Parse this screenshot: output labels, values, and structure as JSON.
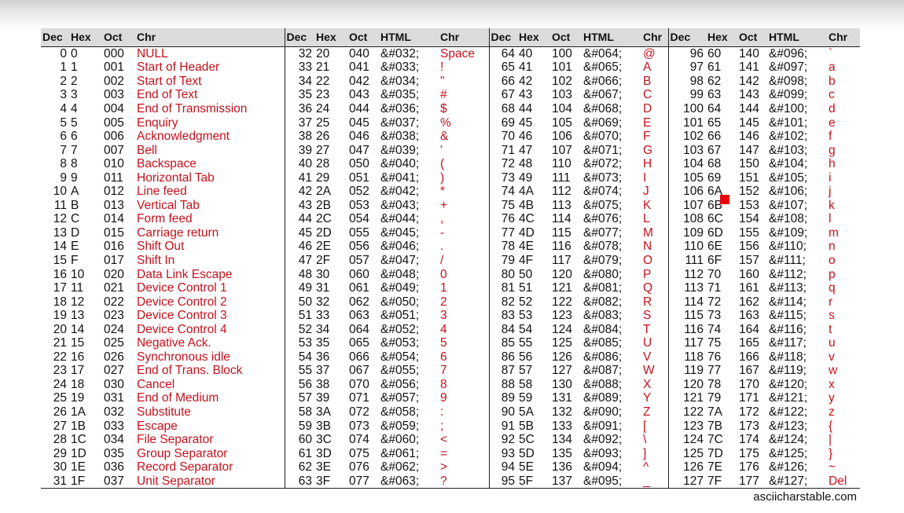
{
  "headers": [
    [
      "Dec",
      "Hex",
      "Oct",
      "Chr"
    ],
    [
      "Dec",
      "Hex",
      "Oct",
      "HTML",
      "Chr"
    ],
    [
      "Dec",
      "Hex",
      "Oct",
      "HTML",
      "Chr"
    ],
    [
      "Dec",
      "Hex",
      "Oct",
      "HTML",
      "Chr"
    ]
  ],
  "rows": [
    [
      [
        "0",
        "0",
        "000",
        "NULL"
      ],
      [
        "32",
        "20",
        "040",
        "&#032;",
        "Space"
      ],
      [
        "64",
        "40",
        "100",
        "&#064;",
        "@"
      ],
      [
        "96",
        "60",
        "140",
        "&#096;",
        "`"
      ]
    ],
    [
      [
        "1",
        "1",
        "001",
        "Start of Header"
      ],
      [
        "33",
        "21",
        "041",
        "&#033;",
        "!"
      ],
      [
        "65",
        "41",
        "101",
        "&#065;",
        "A"
      ],
      [
        "97",
        "61",
        "141",
        "&#097;",
        "a"
      ]
    ],
    [
      [
        "2",
        "2",
        "002",
        "Start of Text"
      ],
      [
        "34",
        "22",
        "042",
        "&#034;",
        "\""
      ],
      [
        "66",
        "42",
        "102",
        "&#066;",
        "B"
      ],
      [
        "98",
        "62",
        "142",
        "&#098;",
        "b"
      ]
    ],
    [
      [
        "3",
        "3",
        "003",
        "End of Text"
      ],
      [
        "35",
        "23",
        "043",
        "&#035;",
        "#"
      ],
      [
        "67",
        "43",
        "103",
        "&#067;",
        "C"
      ],
      [
        "99",
        "63",
        "143",
        "&#099;",
        "c"
      ]
    ],
    [
      [
        "4",
        "4",
        "004",
        "End of Transmission"
      ],
      [
        "36",
        "24",
        "044",
        "&#036;",
        "$"
      ],
      [
        "68",
        "44",
        "104",
        "&#068;",
        "D"
      ],
      [
        "100",
        "64",
        "144",
        "&#100;",
        "d"
      ]
    ],
    [
      [
        "5",
        "5",
        "005",
        "Enquiry"
      ],
      [
        "37",
        "25",
        "045",
        "&#037;",
        "%"
      ],
      [
        "69",
        "45",
        "105",
        "&#069;",
        "E"
      ],
      [
        "101",
        "65",
        "145",
        "&#101;",
        "e"
      ]
    ],
    [
      [
        "6",
        "6",
        "006",
        "Acknowledgment"
      ],
      [
        "38",
        "26",
        "046",
        "&#038;",
        "&"
      ],
      [
        "70",
        "46",
        "106",
        "&#070;",
        "F"
      ],
      [
        "102",
        "66",
        "146",
        "&#102;",
        "f"
      ]
    ],
    [
      [
        "7",
        "7",
        "007",
        "Bell"
      ],
      [
        "39",
        "27",
        "047",
        "&#039;",
        "'"
      ],
      [
        "71",
        "47",
        "107",
        "&#071;",
        "G"
      ],
      [
        "103",
        "67",
        "147",
        "&#103;",
        "g"
      ]
    ],
    [
      [
        "8",
        "8",
        "010",
        "Backspace"
      ],
      [
        "40",
        "28",
        "050",
        "&#040;",
        "("
      ],
      [
        "72",
        "48",
        "110",
        "&#072;",
        "H"
      ],
      [
        "104",
        "68",
        "150",
        "&#104;",
        "h"
      ]
    ],
    [
      [
        "9",
        "9",
        "011",
        "Horizontal Tab"
      ],
      [
        "41",
        "29",
        "051",
        "&#041;",
        ")"
      ],
      [
        "73",
        "49",
        "111",
        "&#073;",
        "I"
      ],
      [
        "105",
        "69",
        "151",
        "&#105;",
        "i"
      ]
    ],
    [
      [
        "10",
        "A",
        "012",
        "Line feed"
      ],
      [
        "42",
        "2A",
        "052",
        "&#042;",
        "*"
      ],
      [
        "74",
        "4A",
        "112",
        "&#074;",
        "J"
      ],
      [
        "106",
        "6A",
        "152",
        "&#106;",
        "j"
      ]
    ],
    [
      [
        "11",
        "B",
        "013",
        "Vertical Tab"
      ],
      [
        "43",
        "2B",
        "053",
        "&#043;",
        "+"
      ],
      [
        "75",
        "4B",
        "113",
        "&#075;",
        "K"
      ],
      [
        "107",
        "6B",
        "153",
        "&#107;",
        "k"
      ]
    ],
    [
      [
        "12",
        "C",
        "014",
        "Form feed"
      ],
      [
        "44",
        "2C",
        "054",
        "&#044;",
        ","
      ],
      [
        "76",
        "4C",
        "114",
        "&#076;",
        "L"
      ],
      [
        "108",
        "6C",
        "154",
        "&#108;",
        "l"
      ]
    ],
    [
      [
        "13",
        "D",
        "015",
        "Carriage return"
      ],
      [
        "45",
        "2D",
        "055",
        "&#045;",
        "-"
      ],
      [
        "77",
        "4D",
        "115",
        "&#077;",
        "M"
      ],
      [
        "109",
        "6D",
        "155",
        "&#109;",
        "m"
      ]
    ],
    [
      [
        "14",
        "E",
        "016",
        "Shift Out"
      ],
      [
        "46",
        "2E",
        "056",
        "&#046;",
        "."
      ],
      [
        "78",
        "4E",
        "116",
        "&#078;",
        "N"
      ],
      [
        "110",
        "6E",
        "156",
        "&#110;",
        "n"
      ]
    ],
    [
      [
        "15",
        "F",
        "017",
        "Shift In"
      ],
      [
        "47",
        "2F",
        "057",
        "&#047;",
        "/"
      ],
      [
        "79",
        "4F",
        "117",
        "&#079;",
        "O"
      ],
      [
        "111",
        "6F",
        "157",
        "&#111;",
        "o"
      ]
    ],
    [
      [
        "16",
        "10",
        "020",
        "Data Link Escape"
      ],
      [
        "48",
        "30",
        "060",
        "&#048;",
        "0"
      ],
      [
        "80",
        "50",
        "120",
        "&#080;",
        "P"
      ],
      [
        "112",
        "70",
        "160",
        "&#112;",
        "p"
      ]
    ],
    [
      [
        "17",
        "11",
        "021",
        "Device Control 1"
      ],
      [
        "49",
        "31",
        "061",
        "&#049;",
        "1"
      ],
      [
        "81",
        "51",
        "121",
        "&#081;",
        "Q"
      ],
      [
        "113",
        "71",
        "161",
        "&#113;",
        "q"
      ]
    ],
    [
      [
        "18",
        "12",
        "022",
        "Device Control 2"
      ],
      [
        "50",
        "32",
        "062",
        "&#050;",
        "2"
      ],
      [
        "82",
        "52",
        "122",
        "&#082;",
        "R"
      ],
      [
        "114",
        "72",
        "162",
        "&#114;",
        "r"
      ]
    ],
    [
      [
        "19",
        "13",
        "023",
        "Device Control 3"
      ],
      [
        "51",
        "33",
        "063",
        "&#051;",
        "3"
      ],
      [
        "83",
        "53",
        "123",
        "&#083;",
        "S"
      ],
      [
        "115",
        "73",
        "163",
        "&#115;",
        "s"
      ]
    ],
    [
      [
        "20",
        "14",
        "024",
        "Device Control 4"
      ],
      [
        "52",
        "34",
        "064",
        "&#052;",
        "4"
      ],
      [
        "84",
        "54",
        "124",
        "&#084;",
        "T"
      ],
      [
        "116",
        "74",
        "164",
        "&#116;",
        "t"
      ]
    ],
    [
      [
        "21",
        "15",
        "025",
        "Negative Ack."
      ],
      [
        "53",
        "35",
        "065",
        "&#053;",
        "5"
      ],
      [
        "85",
        "55",
        "125",
        "&#085;",
        "U"
      ],
      [
        "117",
        "75",
        "165",
        "&#117;",
        "u"
      ]
    ],
    [
      [
        "22",
        "16",
        "026",
        "Synchronous idle"
      ],
      [
        "54",
        "36",
        "066",
        "&#054;",
        "6"
      ],
      [
        "86",
        "56",
        "126",
        "&#086;",
        "V"
      ],
      [
        "118",
        "76",
        "166",
        "&#118;",
        "v"
      ]
    ],
    [
      [
        "23",
        "17",
        "027",
        "End of Trans. Block"
      ],
      [
        "55",
        "37",
        "067",
        "&#055;",
        "7"
      ],
      [
        "87",
        "57",
        "127",
        "&#087;",
        "W"
      ],
      [
        "119",
        "77",
        "167",
        "&#119;",
        "w"
      ]
    ],
    [
      [
        "24",
        "18",
        "030",
        "Cancel"
      ],
      [
        "56",
        "38",
        "070",
        "&#056;",
        "8"
      ],
      [
        "88",
        "58",
        "130",
        "&#088;",
        "X"
      ],
      [
        "120",
        "78",
        "170",
        "&#120;",
        "x"
      ]
    ],
    [
      [
        "25",
        "19",
        "031",
        "End of Medium"
      ],
      [
        "57",
        "39",
        "071",
        "&#057;",
        "9"
      ],
      [
        "89",
        "59",
        "131",
        "&#089;",
        "Y"
      ],
      [
        "121",
        "79",
        "171",
        "&#121;",
        "y"
      ]
    ],
    [
      [
        "26",
        "1A",
        "032",
        "Substitute"
      ],
      [
        "58",
        "3A",
        "072",
        "&#058;",
        ":"
      ],
      [
        "90",
        "5A",
        "132",
        "&#090;",
        "Z"
      ],
      [
        "122",
        "7A",
        "172",
        "&#122;",
        "z"
      ]
    ],
    [
      [
        "27",
        "1B",
        "033",
        "Escape"
      ],
      [
        "59",
        "3B",
        "073",
        "&#059;",
        ";"
      ],
      [
        "91",
        "5B",
        "133",
        "&#091;",
        "["
      ],
      [
        "123",
        "7B",
        "173",
        "&#123;",
        "{"
      ]
    ],
    [
      [
        "28",
        "1C",
        "034",
        "File Separator"
      ],
      [
        "60",
        "3C",
        "074",
        "&#060;",
        "<"
      ],
      [
        "92",
        "5C",
        "134",
        "&#092;",
        "\\"
      ],
      [
        "124",
        "7C",
        "174",
        "&#124;",
        "|"
      ]
    ],
    [
      [
        "29",
        "1D",
        "035",
        "Group Separator"
      ],
      [
        "61",
        "3D",
        "075",
        "&#061;",
        "="
      ],
      [
        "93",
        "5D",
        "135",
        "&#093;",
        "]"
      ],
      [
        "125",
        "7D",
        "175",
        "&#125;",
        "}"
      ]
    ],
    [
      [
        "30",
        "1E",
        "036",
        "Record Separator"
      ],
      [
        "62",
        "3E",
        "076",
        "&#062;",
        ">"
      ],
      [
        "94",
        "5E",
        "136",
        "&#094;",
        "^"
      ],
      [
        "126",
        "7E",
        "176",
        "&#126;",
        "~"
      ]
    ],
    [
      [
        "31",
        "1F",
        "037",
        "Unit Separator"
      ],
      [
        "63",
        "3F",
        "077",
        "&#063;",
        "?"
      ],
      [
        "95",
        "5F",
        "137",
        "&#095;",
        "_"
      ],
      [
        "127",
        "7F",
        "177",
        "&#127;",
        "Del"
      ]
    ]
  ],
  "footer": {
    "source": "asciicharstable.com"
  },
  "colors": {
    "char_red": "#c4121d",
    "marker_red": "#e8000a",
    "header_bg": "#dcdcdc"
  }
}
